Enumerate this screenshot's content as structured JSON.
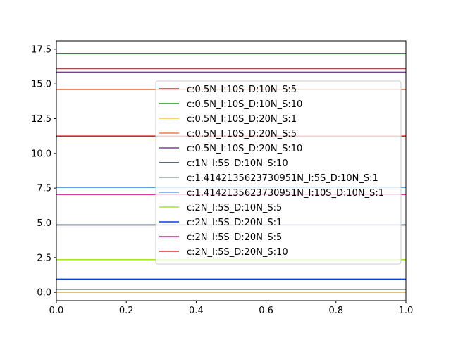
{
  "chart_data": {
    "type": "line",
    "xlim": [
      0.0,
      1.0
    ],
    "ylim": [
      -0.6,
      18.1
    ],
    "x_ticks": [
      "0.0",
      "0.2",
      "0.4",
      "0.6",
      "0.8",
      "1.0"
    ],
    "y_ticks": [
      "0.0",
      "2.5",
      "5.0",
      "7.5",
      "10.0",
      "12.5",
      "15.0",
      "17.5"
    ],
    "grid": false,
    "legend_position": "center-right",
    "series": [
      {
        "name": "c:0.5N_I:10S_D:10N_S:5",
        "color": "#e4212b",
        "x": [
          0,
          1
        ],
        "y": [
          11.25,
          11.25
        ]
      },
      {
        "name": "c:0.5N_I:10S_D:10N_S:10",
        "color": "#1a9a1a",
        "x": [
          0,
          1
        ],
        "y": [
          17.2,
          17.2
        ]
      },
      {
        "name": "c:0.5N_I:10S_D:20N_S:1",
        "color": "#f2c43c",
        "x": [
          0,
          1
        ],
        "y": [
          0.0,
          0.0
        ]
      },
      {
        "name": "c:0.5N_I:10S_D:20N_S:5",
        "color": "#f57b3b",
        "x": [
          0,
          1
        ],
        "y": [
          14.6,
          14.6
        ]
      },
      {
        "name": "c:0.5N_I:10S_D:20N_S:10",
        "color": "#7b3fa0",
        "x": [
          0,
          1
        ],
        "y": [
          15.85,
          15.85
        ]
      },
      {
        "name": "c:1N_I:5S_D:10N_S:10",
        "color": "#26364f",
        "x": [
          0,
          1
        ],
        "y": [
          4.85,
          4.85
        ]
      },
      {
        "name": "c:1.4142135623730951N_I:5S_D:10N_S:1",
        "color": "#98a6a2",
        "x": [
          0,
          1
        ],
        "y": [
          0.2,
          0.2
        ]
      },
      {
        "name": "c:1.4142135623730951N_I:10S_D:10N_S:1",
        "color": "#5ba1e6",
        "x": [
          0,
          1
        ],
        "y": [
          7.55,
          7.55
        ]
      },
      {
        "name": "c:2N_I:5S_D:10N_S:5",
        "color": "#a6e81a",
        "x": [
          0,
          1
        ],
        "y": [
          2.35,
          2.35
        ]
      },
      {
        "name": "c:2N_I:5S_D:20N_S:1",
        "color": "#0a3fe0",
        "x": [
          0,
          1
        ],
        "y": [
          0.95,
          0.95
        ]
      },
      {
        "name": "c:2N_I:5S_D:20N_S:5",
        "color": "#e01a8a",
        "x": [
          0,
          1
        ],
        "y": [
          7.05,
          7.05
        ]
      },
      {
        "name": "c:2N_I:5S_D:20N_S:10",
        "color": "#ee2a34",
        "x": [
          0,
          1
        ],
        "y": [
          16.1,
          16.1
        ]
      }
    ]
  }
}
